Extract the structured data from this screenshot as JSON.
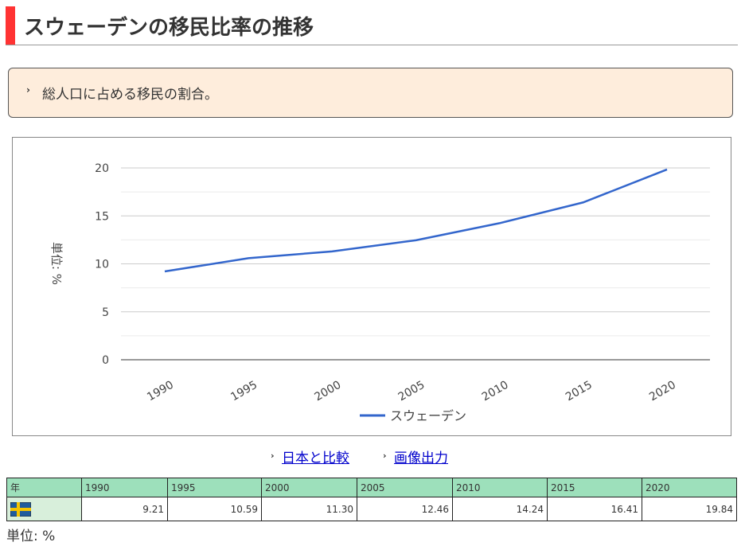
{
  "title": "スウェーデンの移民比率の推移",
  "note": "総人口に占める移民の割合。",
  "links": {
    "compare": "日本と比較",
    "export": "画像出力"
  },
  "table": {
    "header": "年",
    "country_flag": "sweden-flag",
    "years": [
      "1990",
      "1995",
      "2000",
      "2005",
      "2010",
      "2015",
      "2020"
    ],
    "values": [
      "9.21",
      "10.59",
      "11.30",
      "12.46",
      "14.24",
      "16.41",
      "19.84"
    ]
  },
  "unit": "単位: %",
  "chart_data": {
    "type": "line",
    "title": "",
    "xlabel": "",
    "ylabel": "単位: %",
    "categories": [
      "1990",
      "1995",
      "2000",
      "2005",
      "2010",
      "2015",
      "2020"
    ],
    "series": [
      {
        "name": "スウェーデン",
        "color": "#3366cc",
        "values": [
          9.21,
          10.59,
          11.3,
          12.46,
          14.24,
          16.41,
          19.84
        ]
      }
    ],
    "ylim": [
      0,
      20
    ],
    "yticks": [
      "0",
      "5",
      "10",
      "15",
      "20"
    ],
    "grid": true,
    "legend": "bottom"
  }
}
